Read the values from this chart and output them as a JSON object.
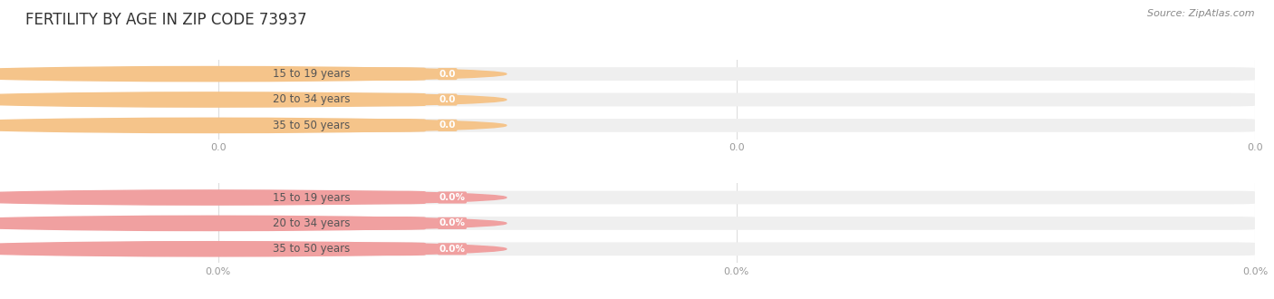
{
  "title": "FERTILITY BY AGE IN ZIP CODE 73937",
  "source_text": "Source: ZipAtlas.com",
  "top_section": {
    "categories": [
      "15 to 19 years",
      "20 to 34 years",
      "35 to 50 years"
    ],
    "values": [
      0.0,
      0.0,
      0.0
    ],
    "bar_bg_color": "#efefef",
    "bar_fill_color": "#f5c48a",
    "value_label_color": "#ffffff",
    "x_tick_labels": [
      "0.0",
      "0.0",
      "0.0"
    ],
    "xlim_max": 1.0
  },
  "bottom_section": {
    "categories": [
      "15 to 19 years",
      "20 to 34 years",
      "35 to 50 years"
    ],
    "values": [
      0.0,
      0.0,
      0.0
    ],
    "bar_bg_color": "#efefef",
    "bar_fill_color": "#f0a0a0",
    "value_label_color": "#ffffff",
    "x_tick_labels": [
      "0.0%",
      "0.0%",
      "0.0%"
    ],
    "xlim_max": 1.0
  },
  "grid_color": "#dddddd",
  "bg_color": "#ffffff",
  "title_fontsize": 12,
  "cat_label_fontsize": 8.5,
  "value_fontsize": 7.5,
  "tick_fontsize": 8,
  "source_fontsize": 8
}
